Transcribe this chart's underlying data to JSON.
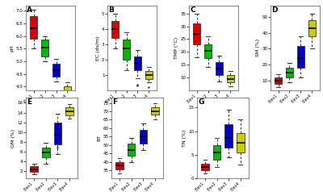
{
  "panels": [
    {
      "label": "A",
      "ylabel": "pH",
      "data": {
        "Elev1": {
          "med": 6.3,
          "q1": 5.9,
          "q3": 6.8,
          "whislo": 5.5,
          "whishi": 7.05,
          "fliers": []
        },
        "Elev2": {
          "med": 5.55,
          "q1": 5.2,
          "q3": 5.85,
          "whislo": 5.0,
          "whishi": 6.0,
          "fliers": []
        },
        "Elev3": {
          "med": 4.65,
          "q1": 4.4,
          "q3": 4.9,
          "whislo": 4.2,
          "whishi": 5.1,
          "fliers": []
        },
        "Elev4": {
          "med": 3.8,
          "q1": 3.6,
          "q3": 4.0,
          "whislo": 3.4,
          "whishi": 4.15,
          "fliers": []
        }
      },
      "ylim": [
        3.85,
        7.2
      ],
      "yticks": [
        4.0,
        4.5,
        5.0,
        5.5,
        6.0,
        6.5,
        7.0
      ]
    },
    {
      "label": "B",
      "ylabel": "EC (ds/m)",
      "data": {
        "Elev1": {
          "med": 4.0,
          "q1": 3.4,
          "q3": 4.5,
          "whislo": 2.7,
          "whishi": 5.0,
          "fliers": []
        },
        "Elev2": {
          "med": 2.7,
          "q1": 2.0,
          "q3": 3.3,
          "whislo": 1.3,
          "whishi": 3.8,
          "fliers": []
        },
        "Elev3": {
          "med": 1.8,
          "q1": 1.3,
          "q3": 2.2,
          "whislo": 0.8,
          "whishi": 2.6,
          "fliers": [
            0.3,
            0.35
          ]
        },
        "Elev4": {
          "med": 1.0,
          "q1": 0.75,
          "q3": 1.25,
          "whislo": 0.5,
          "whishi": 1.5,
          "fliers": [
            0.2
          ]
        }
      },
      "ylim": [
        0.0,
        5.5
      ],
      "yticks": [
        1,
        2,
        3,
        4,
        5
      ]
    },
    {
      "label": "C",
      "ylabel": "TMP (°C)",
      "data": {
        "Elev1": {
          "med": 27.0,
          "q1": 23.0,
          "q3": 31.0,
          "whislo": 18.0,
          "whishi": 35.0,
          "fliers": []
        },
        "Elev2": {
          "med": 20.5,
          "q1": 17.5,
          "q3": 23.0,
          "whislo": 14.0,
          "whishi": 26.0,
          "fliers": []
        },
        "Elev3": {
          "med": 13.5,
          "q1": 11.0,
          "q3": 16.0,
          "whislo": 8.5,
          "whishi": 18.5,
          "fliers": []
        },
        "Elev4": {
          "med": 9.5,
          "q1": 8.0,
          "q3": 11.0,
          "whislo": 6.5,
          "whishi": 12.5,
          "fliers": []
        }
      },
      "ylim": [
        5.0,
        38.0
      ],
      "yticks": [
        10,
        15,
        20,
        25,
        30,
        35
      ]
    },
    {
      "label": "D",
      "ylabel": "SM (%)",
      "data": {
        "Elev1": {
          "med": 10.0,
          "q1": 8.0,
          "q3": 12.0,
          "whislo": 6.0,
          "whishi": 14.0,
          "fliers": []
        },
        "Elev2": {
          "med": 15.0,
          "q1": 12.0,
          "q3": 18.0,
          "whislo": 9.0,
          "whishi": 21.0,
          "fliers": []
        },
        "Elev3": {
          "med": 24.0,
          "q1": 18.0,
          "q3": 32.0,
          "whislo": 12.0,
          "whishi": 38.0,
          "fliers": []
        },
        "Elev4": {
          "med": 43.0,
          "q1": 38.0,
          "q3": 48.0,
          "whislo": 30.0,
          "whishi": 52.0,
          "fliers": []
        }
      },
      "ylim": [
        4.0,
        57.0
      ],
      "yticks": [
        10,
        20,
        30,
        40,
        50
      ]
    },
    {
      "label": "E",
      "ylabel": "OM (%)",
      "data": {
        "Elev1": {
          "med": 2.4,
          "q1": 1.9,
          "q3": 3.0,
          "whislo": 1.3,
          "whishi": 3.6,
          "fliers": []
        },
        "Elev2": {
          "med": 5.8,
          "q1": 4.8,
          "q3": 6.8,
          "whislo": 3.5,
          "whishi": 7.8,
          "fliers": []
        },
        "Elev3": {
          "med": 9.5,
          "q1": 7.5,
          "q3": 12.0,
          "whislo": 5.5,
          "whishi": 13.8,
          "fliers": [
            6.8
          ]
        },
        "Elev4": {
          "med": 14.2,
          "q1": 13.5,
          "q3": 15.0,
          "whislo": 12.8,
          "whishi": 15.8,
          "fliers": []
        }
      },
      "ylim": [
        0.5,
        17.0
      ],
      "yticks": [
        2,
        4,
        6,
        8,
        10,
        12,
        14,
        16
      ]
    },
    {
      "label": "F",
      "ylabel": "BT",
      "data": {
        "Elev1": {
          "med": 38.0,
          "q1": 35.5,
          "q3": 40.0,
          "whislo": 33.0,
          "whishi": 42.0,
          "fliers": []
        },
        "Elev2": {
          "med": 47.0,
          "q1": 43.5,
          "q3": 51.0,
          "whislo": 40.0,
          "whishi": 54.0,
          "fliers": []
        },
        "Elev3": {
          "med": 55.0,
          "q1": 51.0,
          "q3": 59.0,
          "whislo": 47.0,
          "whishi": 63.0,
          "fliers": []
        },
        "Elev4": {
          "med": 70.0,
          "q1": 68.0,
          "q3": 72.5,
          "whislo": 65.0,
          "whishi": 75.0,
          "fliers": []
        }
      },
      "ylim": [
        30.0,
        78.0
      ],
      "yticks": [
        35,
        40,
        45,
        50,
        55,
        60,
        65,
        70,
        75
      ]
    },
    {
      "label": "G",
      "ylabel": "TN (%)",
      "data": {
        "Elev1": {
          "med": 2.5,
          "q1": 1.8,
          "q3": 3.2,
          "whislo": 1.0,
          "whishi": 4.0,
          "fliers": []
        },
        "Elev2": {
          "med": 5.5,
          "q1": 4.0,
          "q3": 7.0,
          "whislo": 2.5,
          "whishi": 8.5,
          "fliers": []
        },
        "Elev3": {
          "med": 8.5,
          "q1": 6.5,
          "q3": 11.5,
          "whislo": 4.5,
          "whishi": 14.5,
          "fliers": []
        },
        "Elev4": {
          "med": 7.5,
          "q1": 5.5,
          "q3": 9.5,
          "whislo": 3.0,
          "whishi": 12.5,
          "fliers": []
        }
      },
      "ylim": [
        0.0,
        17.0
      ],
      "yticks": [
        0,
        5,
        10,
        15
      ]
    }
  ],
  "colors": [
    "#dd0000",
    "#00bb00",
    "#0000cc",
    "#cccc00"
  ],
  "categories": [
    "Elev1",
    "Elev2",
    "Elev3",
    "Elev4"
  ],
  "xticklabels": [
    "Elev1",
    "Elev2",
    "Elev3",
    "Elev4"
  ],
  "background_color": "#ffffff",
  "medianline_color": "#000000"
}
